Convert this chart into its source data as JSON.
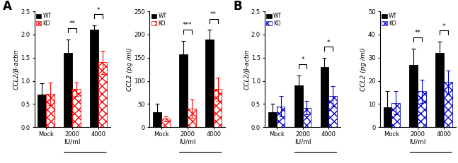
{
  "panel_A_left": {
    "ylabel": "CCL2/β-actin",
    "xlabel": "IU/ml",
    "xtick_labels": [
      "Mock",
      "2000",
      "4000"
    ],
    "ylim": [
      0,
      2.5
    ],
    "yticks": [
      0.0,
      0.5,
      1.0,
      1.5,
      2.0,
      2.5
    ],
    "wt_means": [
      0.7,
      1.6,
      2.1
    ],
    "wt_errors": [
      0.25,
      0.3,
      0.1
    ],
    "ko_means": [
      0.72,
      0.82,
      1.4
    ],
    "ko_errors": [
      0.25,
      0.15,
      0.25
    ],
    "wt_color": "#000000",
    "ko_color": "#FF0000",
    "sig_labels": [
      "**",
      "*"
    ],
    "sig_between_idx": [
      1,
      2
    ]
  },
  "panel_A_right": {
    "ylabel": "CCL2 (pg /ml)",
    "xlabel": "IU/ml",
    "xtick_labels": [
      "Mock",
      "2000",
      "4000"
    ],
    "ylim": [
      0,
      250
    ],
    "yticks": [
      0,
      50,
      100,
      150,
      200,
      250
    ],
    "wt_means": [
      32,
      157,
      190
    ],
    "wt_errors": [
      18,
      30,
      20
    ],
    "ko_means": [
      18,
      40,
      82
    ],
    "ko_errors": [
      5,
      20,
      25
    ],
    "wt_color": "#000000",
    "ko_color": "#FF0000",
    "sig_labels": [
      "***",
      "**"
    ],
    "sig_between_idx": [
      1,
      2
    ]
  },
  "panel_B_left": {
    "ylabel": "CCL2/β-actin",
    "xlabel": "IU/ml",
    "xtick_labels": [
      "Mock",
      "2000",
      "4000"
    ],
    "ylim": [
      0,
      2.5
    ],
    "yticks": [
      0.0,
      0.5,
      1.0,
      1.5,
      2.0,
      2.5
    ],
    "wt_means": [
      0.32,
      0.9,
      1.3
    ],
    "wt_errors": [
      0.18,
      0.22,
      0.2
    ],
    "ko_means": [
      0.45,
      0.42,
      0.67
    ],
    "ko_errors": [
      0.22,
      0.15,
      0.22
    ],
    "wt_color": "#000000",
    "ko_color": "#0000CC",
    "sig_labels": [
      "*",
      "*"
    ],
    "sig_between_idx": [
      1,
      2
    ]
  },
  "panel_B_right": {
    "ylabel": "CCL2 (pg /ml)",
    "xlabel": "IU/ml",
    "xtick_labels": [
      "Mock",
      "2000",
      "4000"
    ],
    "ylim": [
      0,
      50
    ],
    "yticks": [
      0,
      10,
      20,
      30,
      40,
      50
    ],
    "wt_means": [
      8.5,
      27,
      32
    ],
    "wt_errors": [
      7,
      7,
      5
    ],
    "ko_means": [
      10.5,
      15.5,
      19.5
    ],
    "ko_errors": [
      5,
      5,
      5
    ],
    "wt_color": "#000000",
    "ko_color": "#0000CC",
    "sig_labels": [
      "**",
      "*"
    ],
    "sig_between_idx": [
      1,
      2
    ]
  },
  "bar_width": 0.32,
  "legend_wt": "WT",
  "legend_ko": "KO",
  "hatch_pattern": "xxx",
  "font_size": 7,
  "label_font_size": 6.5,
  "tick_font_size": 6
}
